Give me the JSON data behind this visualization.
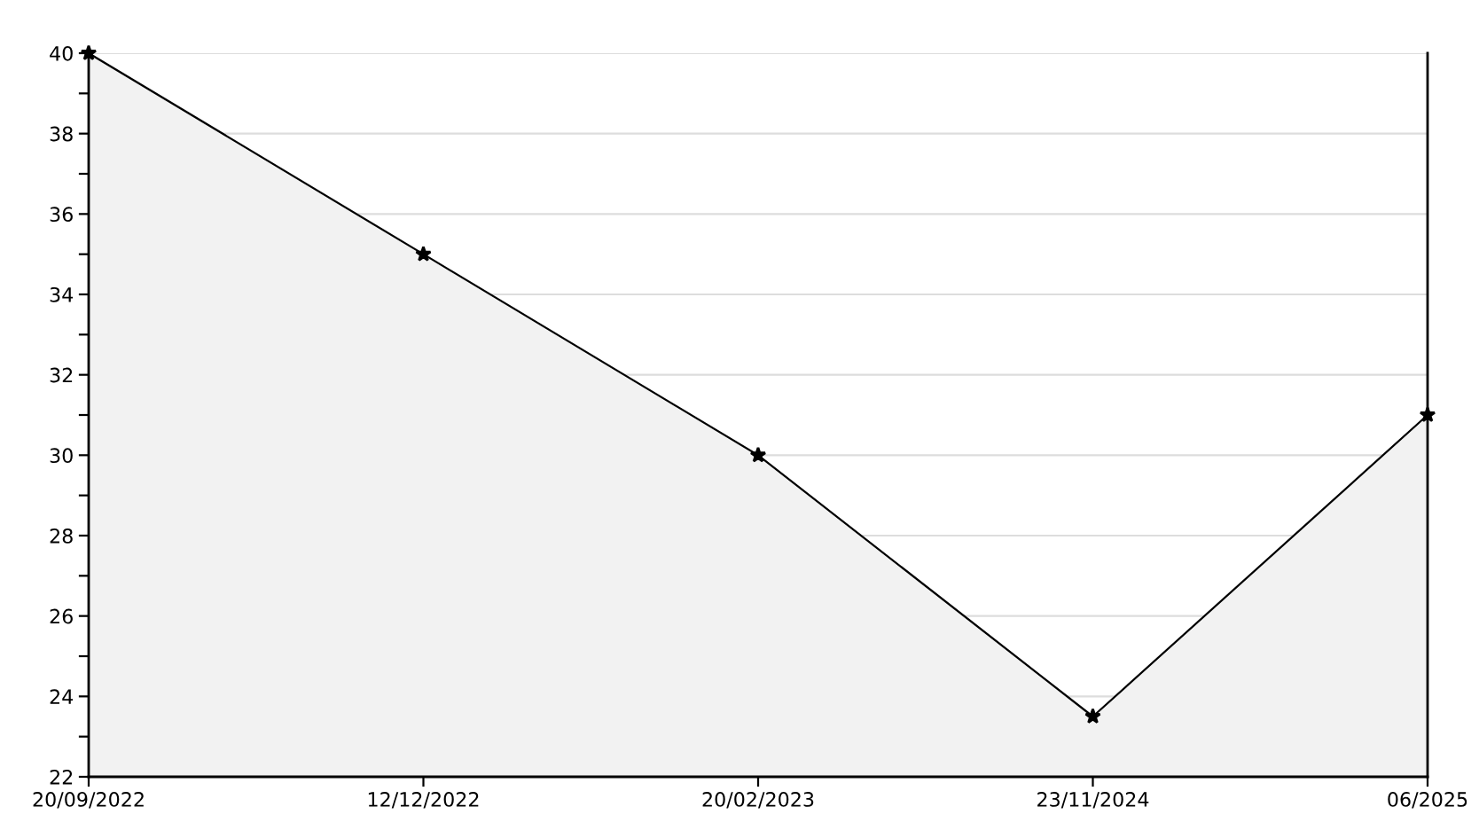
{
  "chart_data": {
    "type": "area",
    "categories": [
      "20/09/2022",
      "12/12/2022",
      "20/02/2023",
      "23/11/2024",
      "06/2025"
    ],
    "series": [
      {
        "color": "#000000",
        "values": [
          40,
          35,
          30,
          23.5,
          31
        ]
      }
    ],
    "ylim": [
      22,
      40
    ],
    "yticks": [
      22,
      {
        "value": 23,
        "label": null
      },
      24,
      {
        "value": 25,
        "label": null
      },
      26,
      {
        "value": 27,
        "label": null
      },
      28,
      {
        "value": 29,
        "label": null
      },
      30,
      {
        "value": 31,
        "label": null
      },
      32,
      {
        "value": 33,
        "label": null
      },
      34,
      {
        "value": 35,
        "label": null
      },
      36,
      {
        "value": 37,
        "label": null
      },
      38,
      {
        "value": 39,
        "label": null
      },
      40
    ],
    "grid": "y",
    "marker": "star",
    "line_style": "solid"
  }
}
